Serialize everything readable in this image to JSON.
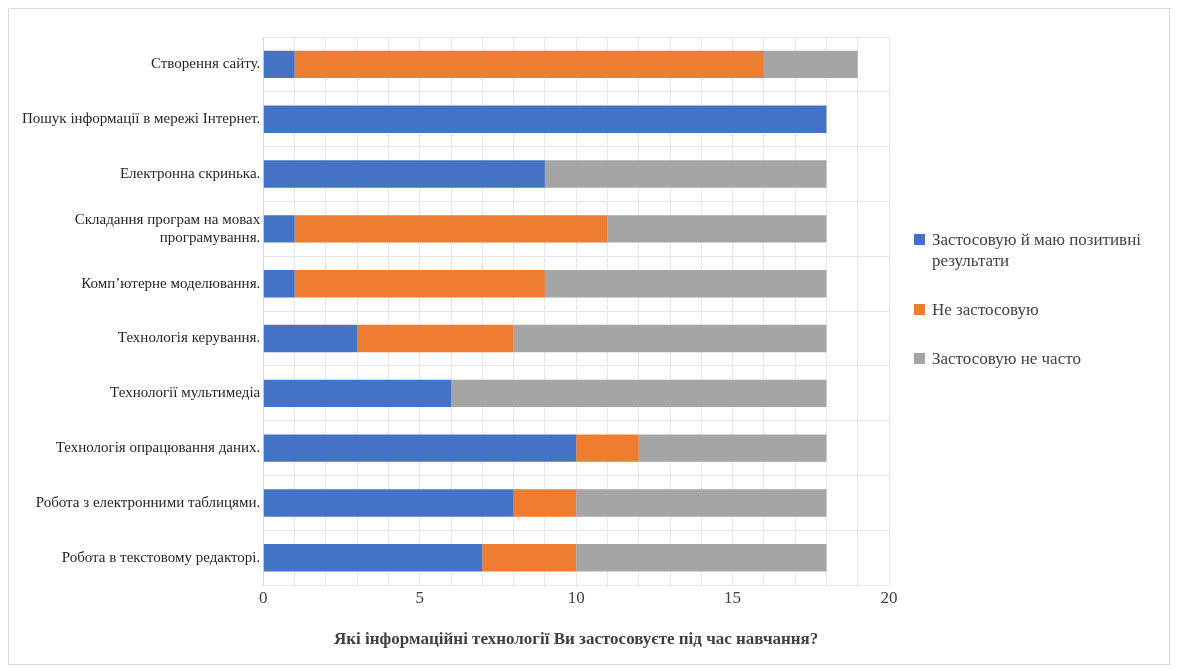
{
  "chart_data": {
    "type": "bar",
    "orientation": "horizontal",
    "stacked": true,
    "xlabel": "Які інформаційні технології Ви застосовуєте під час навчання?",
    "categories": [
      "Створення сайту.",
      "Пошук інформації в мережі Інтернет.",
      "Електронна скринька.",
      "Складання програм на мовах програмування.",
      "Комп’ютерне моделювання.",
      "Технологія керування.",
      "Технології мультимедіа",
      "Технологія опрацювання даних.",
      "Робота з електронними таблицями.",
      "Робота в текстовому редакторі."
    ],
    "series": [
      {
        "name": "Застосовую й маю позитивні результати",
        "color": "#4472c4",
        "values": [
          1,
          18,
          9,
          1,
          1,
          3,
          6,
          10,
          8,
          7
        ]
      },
      {
        "name": "Не застосовую",
        "color": "#ed7d31",
        "values": [
          15,
          0,
          0,
          10,
          8,
          5,
          0,
          2,
          2,
          3
        ]
      },
      {
        "name": "Застосовую не часто",
        "color": "#a5a5a5",
        "values": [
          3,
          0,
          9,
          7,
          9,
          10,
          12,
          6,
          8,
          8
        ]
      }
    ],
    "xlim": [
      0,
      20
    ],
    "xticks": [
      0,
      {
        "value": 1,
        "label": null
      },
      {
        "value": 2,
        "label": null
      },
      {
        "value": 3,
        "label": null
      },
      {
        "value": 4,
        "label": null
      },
      5,
      {
        "value": 6,
        "label": null
      },
      {
        "value": 7,
        "label": null
      },
      {
        "value": 8,
        "label": null
      },
      {
        "value": 9,
        "label": null
      },
      10,
      {
        "value": 11,
        "label": null
      },
      {
        "value": 12,
        "label": null
      },
      {
        "value": 13,
        "label": null
      },
      {
        "value": 14,
        "label": null
      },
      15,
      {
        "value": 16,
        "label": null
      },
      {
        "value": 17,
        "label": null
      },
      {
        "value": 18,
        "label": null
      },
      {
        "value": 19,
        "label": null
      },
      20
    ],
    "grid": true,
    "legend": "right"
  }
}
